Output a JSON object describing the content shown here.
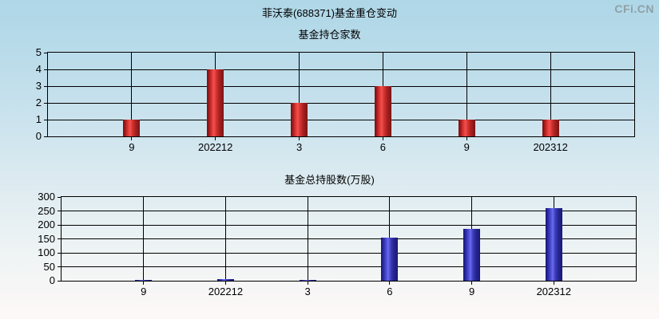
{
  "page": {
    "logo": "CFi.CN",
    "title": "菲沃泰(688371)基金重仓变动"
  },
  "colors": {
    "background_top": "#aed7e7",
    "background_bottom": "#fdf8f7",
    "gridline": "#000000",
    "text": "#000000",
    "logo_gray": "#8fa0a6",
    "bar_red_center": "#f1514d",
    "bar_red_edge": "#731112",
    "bar_blue_center": "#6a6aee",
    "bar_blue_edge": "#14146e"
  },
  "chart_data": [
    {
      "type": "bar",
      "title": "基金持仓家数",
      "categories": [
        "9",
        "202212",
        "3",
        "6",
        "9",
        "202312"
      ],
      "values": [
        1,
        4,
        2,
        3,
        1,
        1
      ],
      "xlabel": "",
      "ylabel": "",
      "ylim": [
        0,
        5
      ],
      "yticks": [
        0,
        1,
        2,
        3,
        4,
        5
      ],
      "grid": true,
      "legend": false,
      "bar_color": "#e03936"
    },
    {
      "type": "bar",
      "title": "基金总持股数(万股)",
      "categories": [
        "9",
        "202212",
        "3",
        "6",
        "9",
        "202312"
      ],
      "values": [
        2,
        6,
        2,
        155,
        187,
        260
      ],
      "xlabel": "",
      "ylabel": "",
      "ylim": [
        0,
        300
      ],
      "yticks": [
        0,
        50,
        100,
        150,
        200,
        250,
        300
      ],
      "grid": true,
      "legend": false,
      "bar_color": "#4a4ad0"
    }
  ]
}
